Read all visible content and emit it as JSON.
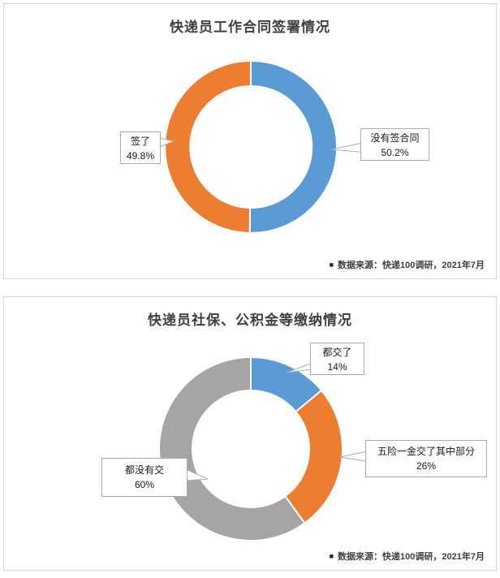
{
  "chart_data": [
    {
      "type": "pie",
      "subtype": "donut",
      "title": "快递员工作合同签署情况",
      "start_angle_deg": 0,
      "direction": "clockwise",
      "legend": "none",
      "data_labels": "callout",
      "source_note": {
        "marker": "■",
        "text": "数据来源：快递100调研，2021年7月"
      },
      "categories": [
        "没有签合同",
        "签了"
      ],
      "values": [
        50.2,
        49.8
      ],
      "segments": [
        {
          "label": "没有签合同",
          "value": 50.2,
          "value_text": "50.2%",
          "color": "#5B9BD5"
        },
        {
          "label": "签了",
          "value": 49.8,
          "value_text": "49.8%",
          "color": "#ED7D31"
        }
      ]
    },
    {
      "type": "pie",
      "subtype": "donut",
      "title": "快递员社保、公积金等缴纳情况",
      "start_angle_deg": 0,
      "direction": "clockwise",
      "legend": "none",
      "data_labels": "callout",
      "source_note": {
        "marker": "■",
        "text": "数据来源：快递100调研，2021年7月"
      },
      "categories": [
        "都交了",
        "五险一金交了其中部分",
        "都没有交"
      ],
      "values": [
        14,
        26,
        60
      ],
      "segments": [
        {
          "label": "都交了",
          "value": 14,
          "value_text": "14%",
          "color": "#5B9BD5"
        },
        {
          "label": "五险一金交了其中部分",
          "value": 26,
          "value_text": "26%",
          "color": "#ED7D31"
        },
        {
          "label": "都没有交",
          "value": 60,
          "value_text": "60%",
          "color": "#A5A5A5"
        }
      ]
    }
  ]
}
